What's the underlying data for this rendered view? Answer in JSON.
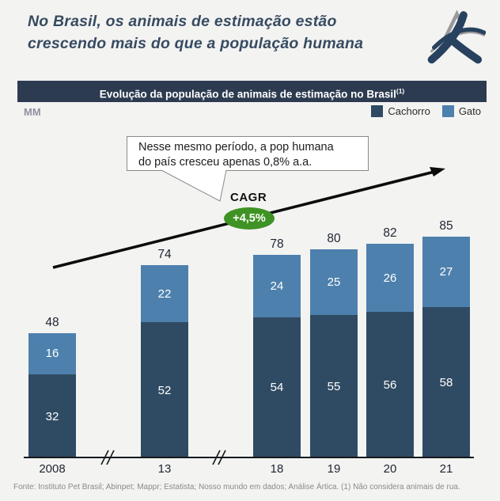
{
  "title": {
    "line1": "No Brasil, os animais de estimação estão",
    "line2": "crescendo mais do que a população humana"
  },
  "banner": {
    "text": "Evolução da população de animais de estimação no Brasil",
    "superscript": "(1)"
  },
  "unit_label": "MM",
  "legend": [
    {
      "label": "Cachorro",
      "color": "#2f4b63"
    },
    {
      "label": "Gato",
      "color": "#4d80ad"
    }
  ],
  "callout": {
    "lines": [
      "Nesse mesmo período, a pop humana",
      "do país cresceu apenas 0,8% a.a."
    ]
  },
  "cagr": {
    "label": "CAGR",
    "value": "+4,5%",
    "badge_color": "#3f9324"
  },
  "footer": "Fonte: Instituto Pet Brasil; Abinpet; Mappr; Estatista; Nosso mundo em dados; Análise Ártica. (1) Não considera animais de rua.",
  "chart_data": {
    "type": "bar",
    "stacked": true,
    "title": "Evolução da população de animais de estimação no Brasil (MM)",
    "unit": "MM",
    "categories": [
      "2008",
      "13",
      "18",
      "19",
      "20",
      "21"
    ],
    "series": [
      {
        "name": "Cachorro",
        "color": "#2f4b63",
        "values": [
          32,
          52,
          54,
          55,
          56,
          58
        ]
      },
      {
        "name": "Gato",
        "color": "#4d80ad",
        "values": [
          16,
          22,
          24,
          25,
          26,
          27
        ]
      }
    ],
    "totals": [
      48,
      74,
      78,
      80,
      82,
      85
    ],
    "ylim": [
      0,
      90
    ],
    "grid": false,
    "legend_position": "top-right",
    "axis_breaks_after": [
      "2008",
      "13"
    ],
    "annotations": [
      {
        "type": "callout",
        "text": "Nesse mesmo período, a pop humana do país cresceu apenas 0,8% a.a."
      },
      {
        "type": "badge",
        "label": "CAGR",
        "value": "+4,5%"
      },
      {
        "type": "trend-arrow",
        "direction": "up"
      }
    ]
  }
}
